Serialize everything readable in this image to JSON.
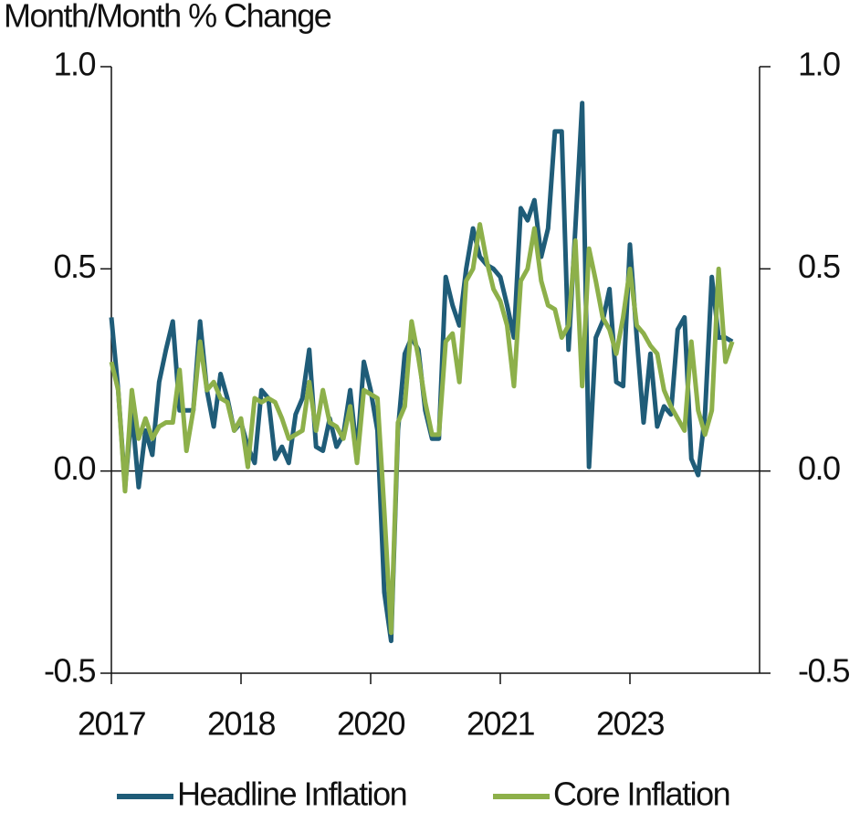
{
  "chart_data": {
    "type": "line",
    "title": "Month/Month % Change",
    "categories": [
      "2017",
      null,
      null,
      null,
      null,
      null,
      null,
      null,
      null,
      null,
      null,
      null,
      null,
      null,
      null,
      null,
      null,
      null,
      null,
      "2018",
      null,
      null,
      null,
      null,
      null,
      null,
      null,
      null,
      null,
      null,
      null,
      null,
      null,
      null,
      null,
      null,
      null,
      null,
      "2020",
      null,
      null,
      null,
      null,
      null,
      null,
      null,
      null,
      null,
      null,
      null,
      null,
      null,
      null,
      null,
      null,
      null,
      null,
      "2021",
      null,
      null,
      null,
      null,
      null,
      null,
      null,
      null,
      null,
      null,
      null,
      null,
      null,
      null,
      null,
      null,
      null,
      null,
      "2023",
      null,
      null,
      null,
      null,
      null,
      null,
      null,
      null,
      null,
      null,
      null,
      null,
      null,
      null,
      null
    ],
    "series": [
      {
        "name": "Headline Inflation",
        "color": "#1f5c78",
        "values": [
          0.38,
          0.2,
          -0.04,
          0.15,
          -0.04,
          0.1,
          0.04,
          0.22,
          0.3,
          0.37,
          0.15,
          0.15,
          0.15,
          0.37,
          0.2,
          0.11,
          0.24,
          0.18,
          0.1,
          0.12,
          0.06,
          0.02,
          0.2,
          0.18,
          0.03,
          0.06,
          0.02,
          0.14,
          0.18,
          0.3,
          0.06,
          0.05,
          0.13,
          0.06,
          0.09,
          0.2,
          0.04,
          0.27,
          0.2,
          0.1,
          -0.3,
          -0.42,
          0.1,
          0.29,
          0.33,
          0.3,
          0.15,
          0.08,
          0.08,
          0.48,
          0.41,
          0.36,
          0.5,
          0.6,
          0.53,
          0.51,
          0.5,
          0.48,
          0.41,
          0.33,
          0.65,
          0.62,
          0.67,
          0.53,
          0.6,
          0.84,
          0.84,
          0.3,
          0.6,
          0.91,
          0.01,
          0.33,
          0.37,
          0.45,
          0.22,
          0.21,
          0.56,
          0.33,
          0.12,
          0.29,
          0.11,
          0.16,
          0.14,
          0.35,
          0.38,
          0.03,
          -0.01,
          0.14,
          0.48,
          0.33,
          0.33,
          0.32
        ]
      },
      {
        "name": "Core Inflation",
        "color": "#8db04a",
        "values": [
          0.27,
          0.2,
          -0.05,
          0.2,
          0.08,
          0.13,
          0.08,
          0.11,
          0.12,
          0.12,
          0.25,
          0.05,
          0.15,
          0.32,
          0.2,
          0.22,
          0.18,
          0.17,
          0.1,
          0.13,
          0.01,
          0.18,
          0.17,
          0.18,
          0.17,
          0.13,
          0.08,
          0.09,
          0.1,
          0.22,
          0.1,
          0.2,
          0.12,
          0.11,
          0.08,
          0.16,
          0.02,
          0.2,
          0.19,
          0.18,
          -0.1,
          -0.4,
          0.12,
          0.16,
          0.37,
          0.28,
          0.17,
          0.09,
          0.09,
          0.32,
          0.34,
          0.22,
          0.47,
          0.5,
          0.61,
          0.52,
          0.45,
          0.42,
          0.36,
          0.21,
          0.47,
          0.5,
          0.6,
          0.47,
          0.41,
          0.4,
          0.33,
          0.36,
          0.57,
          0.21,
          0.55,
          0.47,
          0.38,
          0.35,
          0.29,
          0.38,
          0.5,
          0.36,
          0.34,
          0.31,
          0.29,
          0.2,
          0.16,
          0.13,
          0.1,
          0.32,
          0.15,
          0.09,
          0.15,
          0.5,
          0.27,
          0.32
        ]
      }
    ],
    "ylim": [
      -0.5,
      1.0
    ],
    "yticks": [
      {
        "value": -0.5,
        "label": "-0.5"
      },
      {
        "value": 0,
        "label": "0.0"
      },
      {
        "value": 0.5,
        "label": "0.5"
      },
      {
        "value": 1.0,
        "label": "1.0"
      }
    ],
    "y2lim": [
      -0.5,
      1.0
    ],
    "y2ticks": [
      {
        "value": -0.5,
        "label": "-0.5"
      },
      {
        "value": 0,
        "label": "0.0"
      },
      {
        "value": 0.5,
        "label": "0.5"
      },
      {
        "value": 1.0,
        "label": "1.0"
      }
    ],
    "legend": "bottom"
  }
}
